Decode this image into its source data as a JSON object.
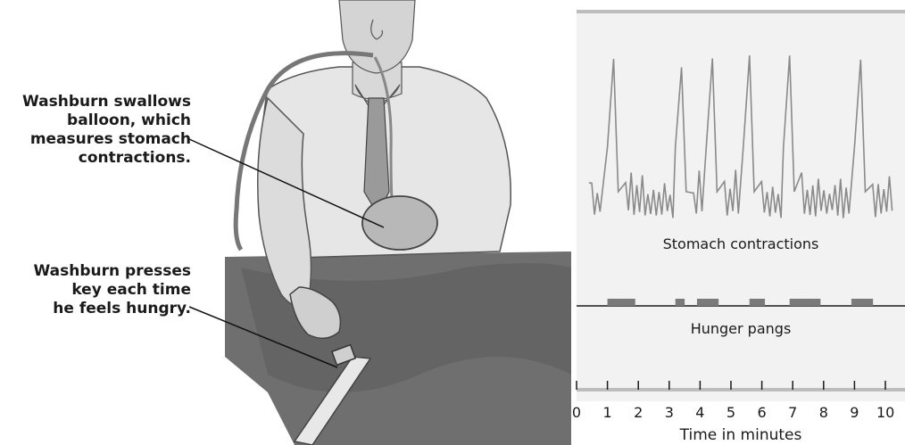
{
  "callouts": {
    "balloon": "Washburn swallows\nballoon, which\nmeasures stomach\ncontractions.",
    "key": "Washburn presses\nkey each time\nhe feels hungry."
  },
  "chart_data": {
    "type": "line",
    "trace_label": "Stomach contractions",
    "events_label": "Hunger pangs",
    "xlabel": "Time in minutes",
    "xlim": [
      0,
      10.3
    ],
    "x_ticks": [
      "0",
      "1",
      "2",
      "3",
      "4",
      "5",
      "6",
      "7",
      "8",
      "9",
      "10"
    ],
    "contraction_peaks_min": [
      1.2,
      3.4,
      4.4,
      5.6,
      6.9,
      9.2
    ],
    "hunger_pangs_min": [
      [
        1.0,
        1.9
      ],
      [
        3.2,
        3.5
      ],
      [
        3.9,
        4.6
      ],
      [
        5.6,
        6.1
      ],
      [
        6.9,
        7.9
      ],
      [
        8.9,
        9.6
      ]
    ]
  },
  "colors": {
    "trace": "#8a8a8a",
    "bars": "#7a7a7a",
    "panel": "#f2f2f2",
    "axis": "#1a1a1a"
  }
}
